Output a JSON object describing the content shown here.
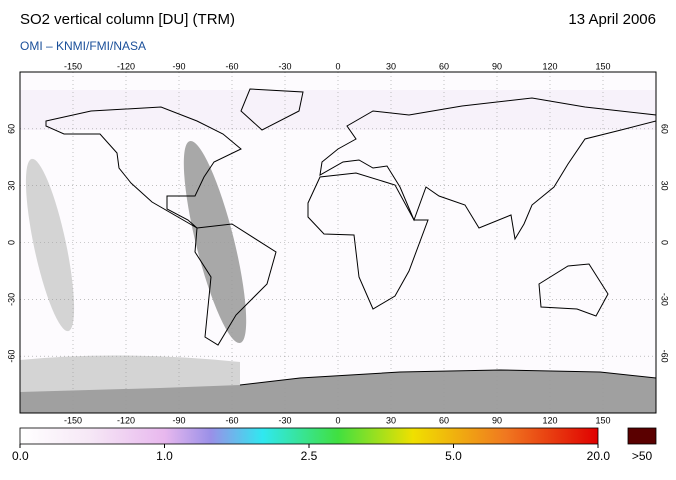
{
  "header": {
    "title": "SO2 vertical column [DU] (TRM)",
    "date": "13 April 2006",
    "subtitle": "OMI  –  KNMI/FMI/NASA"
  },
  "map": {
    "lonlim": [
      -180,
      180
    ],
    "latlim": [
      90,
      -90
    ],
    "lon_ticks": [
      -150,
      -120,
      -90,
      -60,
      -30,
      0,
      30,
      60,
      90,
      120,
      150
    ],
    "lat_ticks": [
      60,
      30,
      0,
      -30,
      -60
    ]
  },
  "colorbar": {
    "ticks": [
      {
        "value": 0,
        "label": "0.0"
      },
      {
        "value": 1,
        "label": "1.0"
      },
      {
        "value": 2.5,
        "label": "2.5"
      },
      {
        "value": 5,
        "label": "5.0"
      },
      {
        "value": 20,
        "label": "20.0"
      }
    ],
    "over_label": ">50"
  }
}
